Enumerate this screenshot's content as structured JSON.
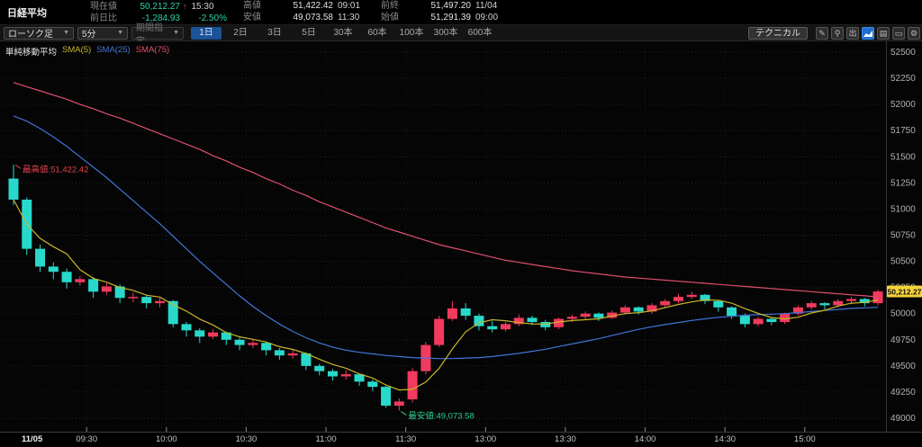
{
  "header": {
    "title": "日経平均",
    "current": {
      "label": "現在値",
      "value": "50,212.27",
      "arrow": "↑",
      "time": "15:30"
    },
    "change": {
      "label": "前日比",
      "value": "-1,284.93",
      "pct": "-2.50%"
    },
    "high": {
      "label": "高値",
      "value": "51,422.42",
      "time": "09:01"
    },
    "low": {
      "label": "安値",
      "value": "49,073.58",
      "time": "11:30"
    },
    "prev_close": {
      "label": "前終",
      "value": "51,497.20",
      "time": "11/04"
    },
    "open": {
      "label": "始値",
      "value": "51,291.39",
      "time": "09:00"
    }
  },
  "toolbar": {
    "chart_type": "ローソク足",
    "interval": "5分",
    "period_label": "期間指定",
    "ranges": [
      "1日",
      "2日",
      "3日",
      "5日",
      "30本",
      "60本",
      "100本",
      "300本",
      "600本"
    ],
    "active_range": "1日",
    "technical_label": "テクニカル",
    "icons": [
      "pencil",
      "magnifier",
      "export",
      "chart",
      "memo",
      "window",
      "gear"
    ]
  },
  "legend": {
    "title": "単純移動平均",
    "series": [
      {
        "label": "SMA(5)",
        "color": "#c8b62a"
      },
      {
        "label": "SMA(25)",
        "color": "#3f76d8"
      },
      {
        "label": "SMA(75)",
        "color": "#e0506e"
      }
    ]
  },
  "annotations": {
    "high": {
      "label": "最高値:51,422.42",
      "price": 51422.42,
      "bar": 0,
      "color": "#e8404a"
    },
    "low": {
      "label": "最安値:49,073.58",
      "price": 49073.58,
      "bar": 29,
      "color": "#2fcf8f"
    }
  },
  "price_tag": {
    "text": "50,212.27",
    "price": 50212.27,
    "bg": "#f5d339"
  },
  "x_axis": {
    "date": "11/05",
    "labels": [
      {
        "t": "09:30",
        "i": 6
      },
      {
        "t": "10:00",
        "i": 12
      },
      {
        "t": "10:30",
        "i": 18
      },
      {
        "t": "11:00",
        "i": 24
      },
      {
        "t": "11:30",
        "i": 30
      },
      {
        "t": "13:00",
        "i": 36
      },
      {
        "t": "13:30",
        "i": 42
      },
      {
        "t": "14:00",
        "i": 48
      },
      {
        "t": "14:30",
        "i": 54
      },
      {
        "t": "15:00",
        "i": 60
      }
    ]
  },
  "y_axis": {
    "min": 49000,
    "max": 52500,
    "step": 250
  },
  "chart_data": {
    "type": "candlestick",
    "title": "日経平均 5分足 1日",
    "up_color": "#f23a5e",
    "down_color": "#28d9cb",
    "grid": true,
    "ylim": [
      49000,
      52500
    ],
    "candles": [
      [
        "09:00",
        51291.39,
        51422.42,
        51040,
        51090
      ],
      [
        "09:05",
        51090,
        51110,
        50560,
        50620
      ],
      [
        "09:10",
        50620,
        50660,
        50400,
        50450
      ],
      [
        "09:15",
        50450,
        50490,
        50330,
        50400
      ],
      [
        "09:20",
        50400,
        50430,
        50240,
        50300
      ],
      [
        "09:25",
        50300,
        50360,
        50270,
        50330
      ],
      [
        "09:30",
        50330,
        50350,
        50150,
        50210
      ],
      [
        "09:35",
        50210,
        50290,
        50180,
        50260
      ],
      [
        "09:40",
        50260,
        50280,
        50100,
        50150
      ],
      [
        "09:45",
        50150,
        50200,
        50110,
        50160
      ],
      [
        "09:50",
        50160,
        50180,
        50050,
        50100
      ],
      [
        "09:55",
        50100,
        50150,
        50060,
        50120
      ],
      [
        "10:00",
        50120,
        50130,
        49870,
        49900
      ],
      [
        "10:05",
        49900,
        49920,
        49780,
        49840
      ],
      [
        "10:10",
        49840,
        49860,
        49720,
        49780
      ],
      [
        "10:15",
        49780,
        49850,
        49760,
        49820
      ],
      [
        "10:20",
        49820,
        49830,
        49700,
        49750
      ],
      [
        "10:25",
        49750,
        49770,
        49650,
        49700
      ],
      [
        "10:30",
        49700,
        49760,
        49670,
        49720
      ],
      [
        "10:35",
        49720,
        49730,
        49600,
        49650
      ],
      [
        "10:40",
        49650,
        49670,
        49560,
        49600
      ],
      [
        "10:45",
        49600,
        49660,
        49570,
        49620
      ],
      [
        "10:50",
        49620,
        49630,
        49460,
        49500
      ],
      [
        "10:55",
        49500,
        49520,
        49410,
        49450
      ],
      [
        "11:00",
        49450,
        49470,
        49360,
        49400
      ],
      [
        "11:05",
        49400,
        49460,
        49370,
        49420
      ],
      [
        "11:10",
        49420,
        49430,
        49310,
        49350
      ],
      [
        "11:15",
        49350,
        49370,
        49260,
        49300
      ],
      [
        "11:20",
        49300,
        49310,
        49100,
        49120
      ],
      [
        "11:25",
        49120,
        49190,
        49073.58,
        49160
      ],
      [
        "12:30",
        49180,
        49480,
        49150,
        49450
      ],
      [
        "12:35",
        49450,
        49730,
        49420,
        49700
      ],
      [
        "12:40",
        49700,
        49980,
        49680,
        49950
      ],
      [
        "12:45",
        49950,
        50120,
        49930,
        50050
      ],
      [
        "12:50",
        50050,
        50100,
        49940,
        49980
      ],
      [
        "12:55",
        49980,
        50000,
        49840,
        49880
      ],
      [
        "13:00",
        49880,
        49930,
        49820,
        49850
      ],
      [
        "13:05",
        49850,
        49920,
        49830,
        49900
      ],
      [
        "13:10",
        49900,
        49990,
        49880,
        49960
      ],
      [
        "13:15",
        49960,
        49980,
        49890,
        49920
      ],
      [
        "13:20",
        49920,
        49940,
        49840,
        49870
      ],
      [
        "13:25",
        49870,
        49960,
        49850,
        49950
      ],
      [
        "13:30",
        49950,
        49990,
        49920,
        49970
      ],
      [
        "13:35",
        49970,
        50020,
        49940,
        50000
      ],
      [
        "13:40",
        50000,
        50010,
        49930,
        49960
      ],
      [
        "13:45",
        49960,
        50030,
        49950,
        50010
      ],
      [
        "13:50",
        50010,
        50080,
        49990,
        50060
      ],
      [
        "13:55",
        50060,
        50070,
        49990,
        50020
      ],
      [
        "14:00",
        50020,
        50100,
        50000,
        50080
      ],
      [
        "14:05",
        50080,
        50140,
        50060,
        50120
      ],
      [
        "14:10",
        50120,
        50190,
        50100,
        50160
      ],
      [
        "14:15",
        50160,
        50210,
        50140,
        50180
      ],
      [
        "14:20",
        50180,
        50190,
        50090,
        50120
      ],
      [
        "14:25",
        50120,
        50130,
        50020,
        50060
      ],
      [
        "14:30",
        50060,
        50070,
        49950,
        49980
      ],
      [
        "14:35",
        49980,
        50000,
        49870,
        49900
      ],
      [
        "14:40",
        49900,
        49970,
        49880,
        49950
      ],
      [
        "14:45",
        49950,
        49960,
        49890,
        49920
      ],
      [
        "14:50",
        49920,
        50010,
        49900,
        50000
      ],
      [
        "14:55",
        50000,
        50080,
        49980,
        50060
      ],
      [
        "15:00",
        50060,
        50120,
        50040,
        50100
      ],
      [
        "15:05",
        50100,
        50110,
        50040,
        50080
      ],
      [
        "15:10",
        50080,
        50140,
        50060,
        50120
      ],
      [
        "15:15",
        50120,
        50160,
        50090,
        50140
      ],
      [
        "15:20",
        50140,
        50150,
        50070,
        50100
      ],
      [
        "15:25",
        50100,
        50230,
        50080,
        50212.27
      ]
    ],
    "series": [
      {
        "name": "SMA(25)",
        "color": "#3f76d8",
        "values": [
          51890,
          51840,
          51770,
          51690,
          51600,
          51500,
          51400,
          51300,
          51190,
          51080,
          50970,
          50860,
          50740,
          50620,
          50500,
          50390,
          50280,
          50170,
          50070,
          49980,
          49900,
          49830,
          49770,
          49720,
          49680,
          49650,
          49630,
          49615,
          49600,
          49590,
          49580,
          49575,
          49570,
          49570,
          49575,
          49580,
          49590,
          49605,
          49620,
          49640,
          49660,
          49685,
          49710,
          49735,
          49760,
          49790,
          49820,
          49850,
          49875,
          49895,
          49915,
          49935,
          49950,
          49965,
          49975,
          49985,
          49990,
          49995,
          50000,
          50010,
          50020,
          50030,
          50040,
          50050,
          50055,
          50060
        ]
      },
      {
        "name": "SMA(75)",
        "color": "#e0506e",
        "values": [
          52210,
          52170,
          52130,
          52090,
          52050,
          52000,
          51960,
          51910,
          51870,
          51820,
          51770,
          51720,
          51670,
          51620,
          51570,
          51510,
          51460,
          51400,
          51350,
          51290,
          51240,
          51180,
          51130,
          51070,
          51020,
          50970,
          50920,
          50870,
          50820,
          50780,
          50740,
          50700,
          50660,
          50630,
          50600,
          50570,
          50540,
          50510,
          50490,
          50470,
          50450,
          50430,
          50410,
          50395,
          50380,
          50365,
          50350,
          50340,
          50330,
          50320,
          50310,
          50300,
          50290,
          50280,
          50270,
          50260,
          50250,
          50240,
          50230,
          50220,
          50210,
          50200,
          50190,
          50180,
          50170,
          50160
        ]
      }
    ],
    "sma5": {
      "name": "SMA(5)",
      "color": "#c8b62a",
      "derived_from": "closes, window 5"
    }
  }
}
